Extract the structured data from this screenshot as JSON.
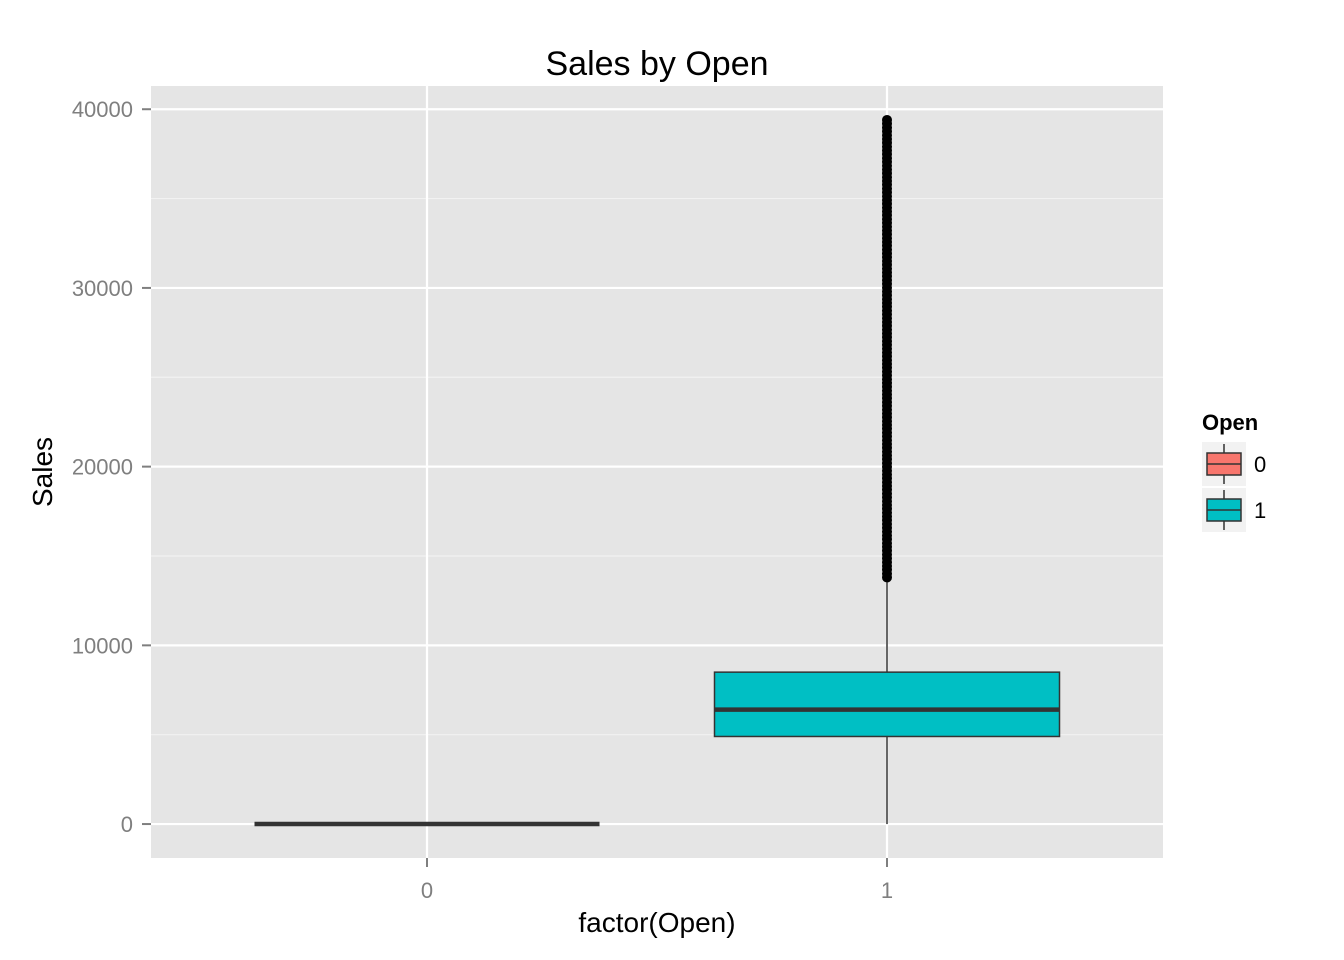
{
  "chart_data": {
    "type": "boxplot",
    "title": "Sales by Open",
    "xlabel": "factor(Open)",
    "ylabel": "Sales",
    "categories": [
      "0",
      "1"
    ],
    "yticks": [
      0,
      10000,
      20000,
      30000,
      40000
    ],
    "ylim": [
      -1900,
      41300
    ],
    "grid": true,
    "legend": {
      "title": "Open",
      "placement": "right",
      "entries": [
        {
          "label": "0",
          "color": "#F8766D"
        },
        {
          "label": "1",
          "color": "#00BFC4"
        }
      ]
    },
    "boxes": [
      {
        "category": "0",
        "min": 0,
        "q1": 0,
        "median": 0,
        "q3": 0,
        "max": 0,
        "color": "#F8766D",
        "outlier_range": null
      },
      {
        "category": "1",
        "min": 0,
        "q1": 4900,
        "median": 6400,
        "q3": 8500,
        "max": 13800,
        "color": "#00BFC4",
        "outlier_range": [
          13800,
          39400
        ]
      }
    ]
  },
  "colors": {
    "panel_background": "#E5E5E5",
    "grid_major": "#FFFFFF",
    "grid_minor": "#F2F2F2",
    "box_line": "#333333",
    "outlier": "#000000"
  }
}
